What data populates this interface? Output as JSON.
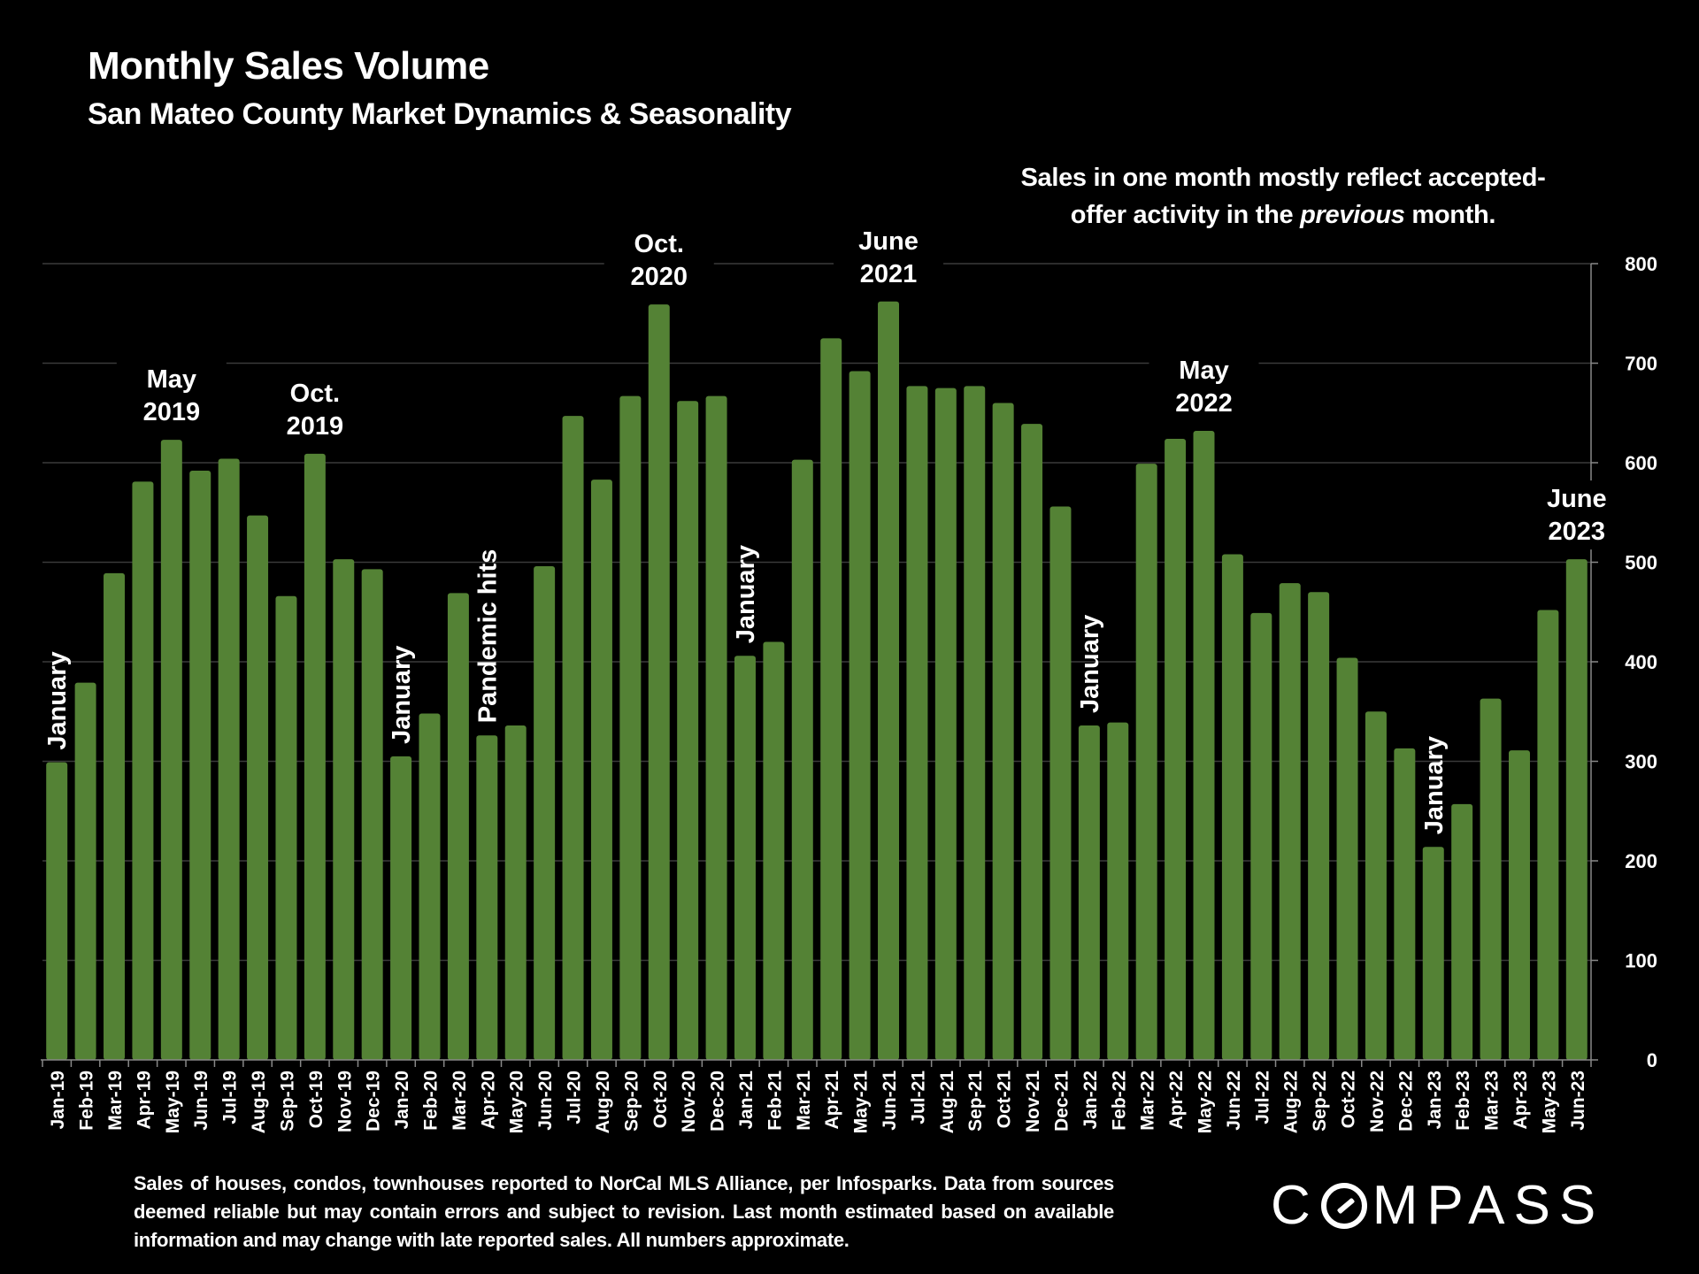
{
  "header": {
    "title": "Monthly Sales Volume",
    "subtitle": "San Mateo County Market Dynamics & Seasonality"
  },
  "note": {
    "line1": "Sales in one month mostly reflect accepted-",
    "line2_before": "offer activity in the ",
    "line2_italic": "previous",
    "line2_after": " month."
  },
  "footer": {
    "text": "Sales of houses, condos, townhouses reported to NorCal MLS Alliance, per Infosparks. Data from sources deemed reliable but may contain errors and subject to revision. Last month estimated based on available information and may change with late reported sales. All numbers approximate."
  },
  "logo": {
    "before": "C",
    "after": "MPASS"
  },
  "colors": {
    "bar": "#548235",
    "background": "#000000",
    "grid": "#3a3a3a",
    "text": "#ffffff"
  },
  "chart_data": {
    "type": "bar",
    "title": "Monthly Sales Volume",
    "subtitle": "San Mateo County Market Dynamics & Seasonality",
    "xlabel": "",
    "ylabel": "",
    "y_axis_side": "right",
    "ylim": [
      0,
      800
    ],
    "yticks": [
      0,
      100,
      200,
      300,
      400,
      500,
      600,
      700,
      800
    ],
    "grid": true,
    "categories": [
      "Jan-19",
      "Feb-19",
      "Mar-19",
      "Apr-19",
      "May-19",
      "Jun-19",
      "Jul-19",
      "Aug-19",
      "Sep-19",
      "Oct-19",
      "Nov-19",
      "Dec-19",
      "Jan-20",
      "Feb-20",
      "Mar-20",
      "Apr-20",
      "May-20",
      "Jun-20",
      "Jul-20",
      "Aug-20",
      "Sep-20",
      "Oct-20",
      "Nov-20",
      "Dec-20",
      "Jan-21",
      "Feb-21",
      "Mar-21",
      "Apr-21",
      "May-21",
      "Jun-21",
      "Jul-21",
      "Aug-21",
      "Sep-21",
      "Oct-21",
      "Nov-21",
      "Dec-21",
      "Jan-22",
      "Feb-22",
      "Mar-22",
      "Apr-22",
      "May-22",
      "Jun-22",
      "Jul-22",
      "Aug-22",
      "Sep-22",
      "Oct-22",
      "Nov-22",
      "Dec-22",
      "Jan-23",
      "Feb-23",
      "Mar-23",
      "Apr-23",
      "May-23",
      "Jun-23"
    ],
    "values": [
      299,
      379,
      489,
      581,
      623,
      592,
      604,
      547,
      466,
      609,
      503,
      493,
      305,
      348,
      469,
      326,
      336,
      496,
      647,
      583,
      667,
      759,
      662,
      667,
      406,
      420,
      603,
      725,
      692,
      762,
      677,
      675,
      677,
      660,
      639,
      556,
      336,
      339,
      599,
      624,
      632,
      508,
      449,
      479,
      470,
      404,
      350,
      313,
      214,
      257,
      363,
      311,
      452,
      503
    ],
    "annotations": [
      {
        "index": 0,
        "lines": [
          "January"
        ],
        "rotated": true
      },
      {
        "index": 4,
        "lines": [
          "May",
          "2019"
        ],
        "rotated": false
      },
      {
        "index": 9,
        "lines": [
          "Oct.",
          "2019"
        ],
        "rotated": false
      },
      {
        "index": 12,
        "lines": [
          "January"
        ],
        "rotated": true
      },
      {
        "index": 15,
        "lines": [
          "Pandemic hits"
        ],
        "rotated": true
      },
      {
        "index": 21,
        "lines": [
          "Oct.",
          "2020"
        ],
        "rotated": false
      },
      {
        "index": 24,
        "lines": [
          "January"
        ],
        "rotated": true
      },
      {
        "index": 29,
        "lines": [
          "June",
          "2021"
        ],
        "rotated": false
      },
      {
        "index": 36,
        "lines": [
          "January"
        ],
        "rotated": true
      },
      {
        "index": 40,
        "lines": [
          "May",
          "2022"
        ],
        "rotated": false
      },
      {
        "index": 48,
        "lines": [
          "January"
        ],
        "rotated": true
      },
      {
        "index": 53,
        "lines": [
          "June",
          "2023"
        ],
        "rotated": false
      }
    ]
  }
}
